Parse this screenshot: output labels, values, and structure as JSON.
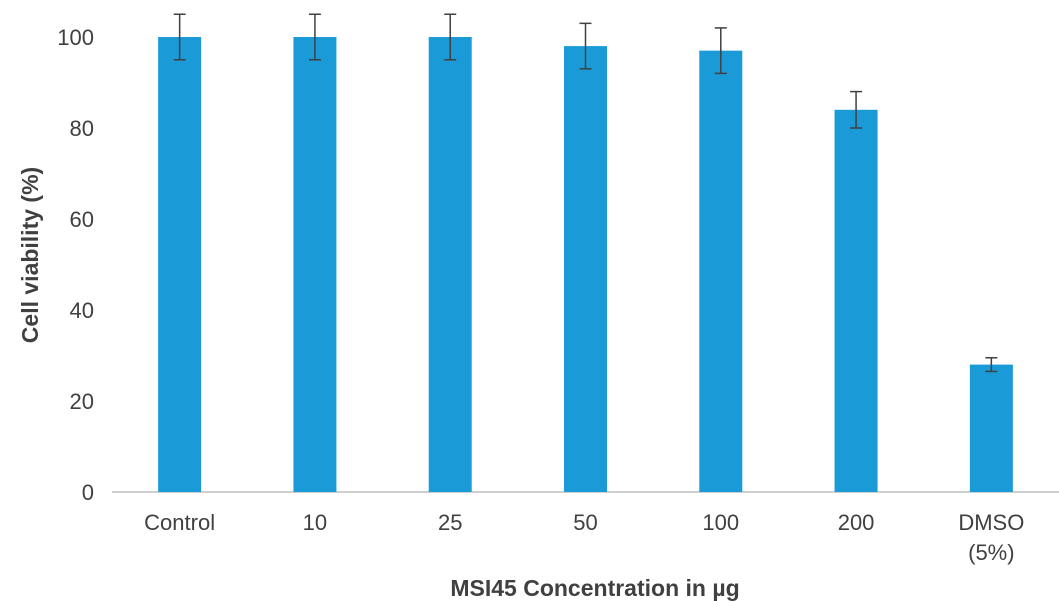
{
  "chart_data": {
    "type": "bar",
    "xlabel": "MSI45 Concentration  in µg",
    "ylabel": "Cell viability (%)",
    "categories": [
      [
        "Control"
      ],
      [
        "10"
      ],
      [
        "25"
      ],
      [
        "50"
      ],
      [
        "100"
      ],
      [
        "200"
      ],
      [
        "DMSO",
        "(5%)"
      ]
    ],
    "values": [
      100,
      100,
      100,
      98,
      97,
      84,
      28
    ],
    "error": [
      5,
      5,
      5,
      5,
      5,
      4,
      1.5
    ],
    "ylim": [
      0,
      100
    ],
    "yticks": [
      0,
      20,
      40,
      60,
      80,
      100
    ],
    "grid": false,
    "colors": {
      "bar": "#1a9ad6",
      "error_bar": "#404040",
      "axis": "#bfbfbf",
      "text": "#404040"
    }
  }
}
